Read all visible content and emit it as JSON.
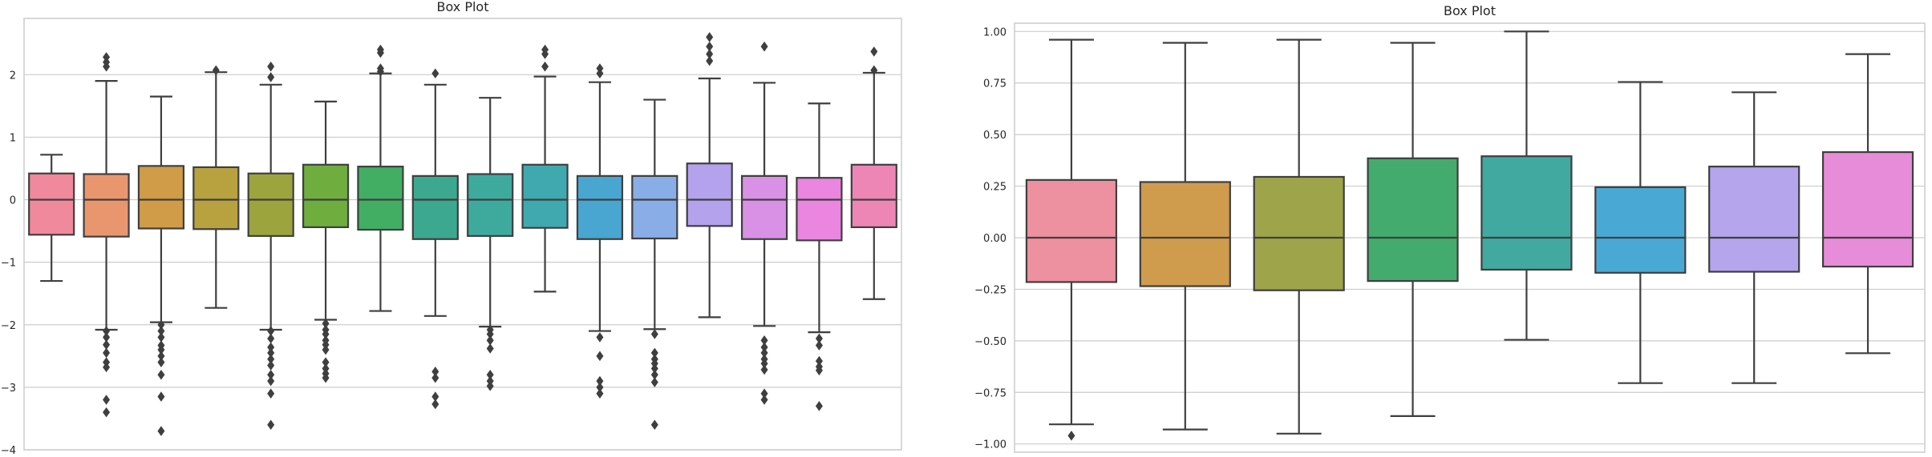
{
  "chart_data": [
    {
      "type": "box",
      "title": "Box Plot",
      "xlabel": "",
      "ylabel": "",
      "ylim": [
        -4,
        2.9
      ],
      "yticks": [
        -4,
        -3,
        -2,
        -1,
        0,
        1,
        2
      ],
      "tick_labels": [
        "−4",
        "−3",
        "−2",
        "−1",
        "0",
        "1",
        "2"
      ],
      "grid": true,
      "boxes": [
        {
          "color": "#f0899b",
          "q1": -0.56,
          "median": 0.0,
          "q3": 0.42,
          "whisker_low": -1.3,
          "whisker_high": 0.72,
          "fliers": []
        },
        {
          "color": "#e9966f",
          "q1": -0.59,
          "median": 0.0,
          "q3": 0.41,
          "whisker_low": -2.08,
          "whisker_high": 1.9,
          "fliers": [
            2.28,
            2.2,
            2.13,
            -2.1,
            -2.2,
            -2.32,
            -2.45,
            -2.6,
            -2.68,
            -3.2,
            -3.4
          ]
        },
        {
          "color": "#d09c48",
          "q1": -0.46,
          "median": 0.0,
          "q3": 0.54,
          "whisker_low": -1.96,
          "whisker_high": 1.65,
          "fliers": [
            -2.0,
            -2.1,
            -2.2,
            -2.33,
            -2.4,
            -2.5,
            -2.6,
            -2.8,
            -3.15,
            -3.7
          ]
        },
        {
          "color": "#b8a23f",
          "q1": -0.47,
          "median": 0.0,
          "q3": 0.52,
          "whisker_low": -1.73,
          "whisker_high": 2.04,
          "fliers": [
            2.07
          ]
        },
        {
          "color": "#9ca53d",
          "q1": -0.58,
          "median": 0.0,
          "q3": 0.42,
          "whisker_low": -2.08,
          "whisker_high": 1.84,
          "fliers": [
            2.13,
            1.96,
            -2.1,
            -2.22,
            -2.36,
            -2.45,
            -2.55,
            -2.65,
            -2.8,
            -2.9,
            -3.1,
            -3.6
          ]
        },
        {
          "color": "#6fad3f",
          "q1": -0.44,
          "median": 0.0,
          "q3": 0.56,
          "whisker_low": -1.92,
          "whisker_high": 1.57,
          "fliers": [
            -1.98,
            -2.08,
            -2.15,
            -2.25,
            -2.32,
            -2.4,
            -2.6,
            -2.7,
            -2.78,
            -2.85
          ]
        },
        {
          "color": "#42ae64",
          "q1": -0.48,
          "median": 0.0,
          "q3": 0.53,
          "whisker_low": -1.78,
          "whisker_high": 2.02,
          "fliers": [
            2.4,
            2.35,
            2.1,
            2.05
          ]
        },
        {
          "color": "#3ca890",
          "q1": -0.63,
          "median": 0.0,
          "q3": 0.38,
          "whisker_low": -1.86,
          "whisker_high": 1.84,
          "fliers": [
            2.02,
            -2.75,
            -2.85,
            -3.15,
            -3.27
          ]
        },
        {
          "color": "#3eaa9e",
          "q1": -0.58,
          "median": 0.0,
          "q3": 0.41,
          "whisker_low": -2.03,
          "whisker_high": 1.63,
          "fliers": [
            -2.08,
            -2.15,
            -2.25,
            -2.38,
            -2.8,
            -2.9,
            -2.98
          ]
        },
        {
          "color": "#40a9b0",
          "q1": -0.45,
          "median": 0.0,
          "q3": 0.56,
          "whisker_low": -1.47,
          "whisker_high": 1.97,
          "fliers": [
            2.4,
            2.33,
            2.13
          ]
        },
        {
          "color": "#49a6d0",
          "q1": -0.63,
          "median": 0.0,
          "q3": 0.38,
          "whisker_low": -2.1,
          "whisker_high": 1.88,
          "fliers": [
            2.1,
            2.02,
            -2.2,
            -2.5,
            -2.9,
            -3.0,
            -3.1
          ]
        },
        {
          "color": "#89ade6",
          "q1": -0.62,
          "median": 0.0,
          "q3": 0.38,
          "whisker_low": -2.07,
          "whisker_high": 1.6,
          "fliers": [
            -2.15,
            -2.45,
            -2.55,
            -2.62,
            -2.7,
            -2.8,
            -2.92,
            -3.6
          ]
        },
        {
          "color": "#b5a2ed",
          "q1": -0.42,
          "median": 0.0,
          "q3": 0.58,
          "whisker_low": -1.88,
          "whisker_high": 1.94,
          "fliers": [
            2.6,
            2.45,
            2.33,
            2.22
          ]
        },
        {
          "color": "#d991e6",
          "q1": -0.63,
          "median": 0.0,
          "q3": 0.38,
          "whisker_low": -2.02,
          "whisker_high": 1.87,
          "fliers": [
            2.45,
            -2.25,
            -2.36,
            -2.45,
            -2.55,
            -2.62,
            -2.72,
            -3.1,
            -3.2
          ]
        },
        {
          "color": "#ea86df",
          "q1": -0.65,
          "median": 0.0,
          "q3": 0.35,
          "whisker_low": -2.12,
          "whisker_high": 1.54,
          "fliers": [
            -2.22,
            -2.33,
            -2.58,
            -2.67,
            -2.73,
            -3.3
          ]
        },
        {
          "color": "#ee86b5",
          "q1": -0.44,
          "median": 0.0,
          "q3": 0.56,
          "whisker_low": -1.59,
          "whisker_high": 2.03,
          "fliers": [
            2.37,
            2.07
          ]
        }
      ]
    },
    {
      "type": "box",
      "title": "Box Plot",
      "xlabel": "",
      "ylabel": "",
      "ylim": [
        -1.04,
        1.04
      ],
      "yticks": [
        -1.0,
        -0.75,
        -0.5,
        -0.25,
        0.0,
        0.25,
        0.5,
        0.75,
        1.0
      ],
      "tick_labels": [
        "−1.00",
        "−0.75",
        "−0.50",
        "−0.25",
        "0.00",
        "0.25",
        "0.50",
        "0.75",
        "1.00"
      ],
      "grid": true,
      "boxes": [
        {
          "color": "#ed909f",
          "q1": -0.215,
          "median": 0.0,
          "q3": 0.28,
          "whisker_low": -0.905,
          "whisker_high": 0.96,
          "fliers": [
            -0.96
          ]
        },
        {
          "color": "#cf9b4d",
          "q1": -0.235,
          "median": 0.0,
          "q3": 0.27,
          "whisker_low": -0.93,
          "whisker_high": 0.945,
          "fliers": []
        },
        {
          "color": "#9ea44a",
          "q1": -0.255,
          "median": 0.0,
          "q3": 0.295,
          "whisker_low": -0.95,
          "whisker_high": 0.96,
          "fliers": []
        },
        {
          "color": "#43ab6d",
          "q1": -0.21,
          "median": 0.0,
          "q3": 0.385,
          "whisker_low": -0.865,
          "whisker_high": 0.945,
          "fliers": []
        },
        {
          "color": "#42a9a0",
          "q1": -0.155,
          "median": 0.0,
          "q3": 0.395,
          "whisker_low": -0.495,
          "whisker_high": 1.0,
          "fliers": []
        },
        {
          "color": "#4aa9d4",
          "q1": -0.17,
          "median": 0.0,
          "q3": 0.245,
          "whisker_low": -0.705,
          "whisker_high": 0.755,
          "fliers": []
        },
        {
          "color": "#b4a5ec",
          "q1": -0.165,
          "median": 0.0,
          "q3": 0.345,
          "whisker_low": -0.705,
          "whisker_high": 0.705,
          "fliers": []
        },
        {
          "color": "#e68cd8",
          "q1": -0.14,
          "median": 0.0,
          "q3": 0.415,
          "whisker_low": -0.56,
          "whisker_high": 0.89,
          "fliers": []
        }
      ]
    }
  ]
}
